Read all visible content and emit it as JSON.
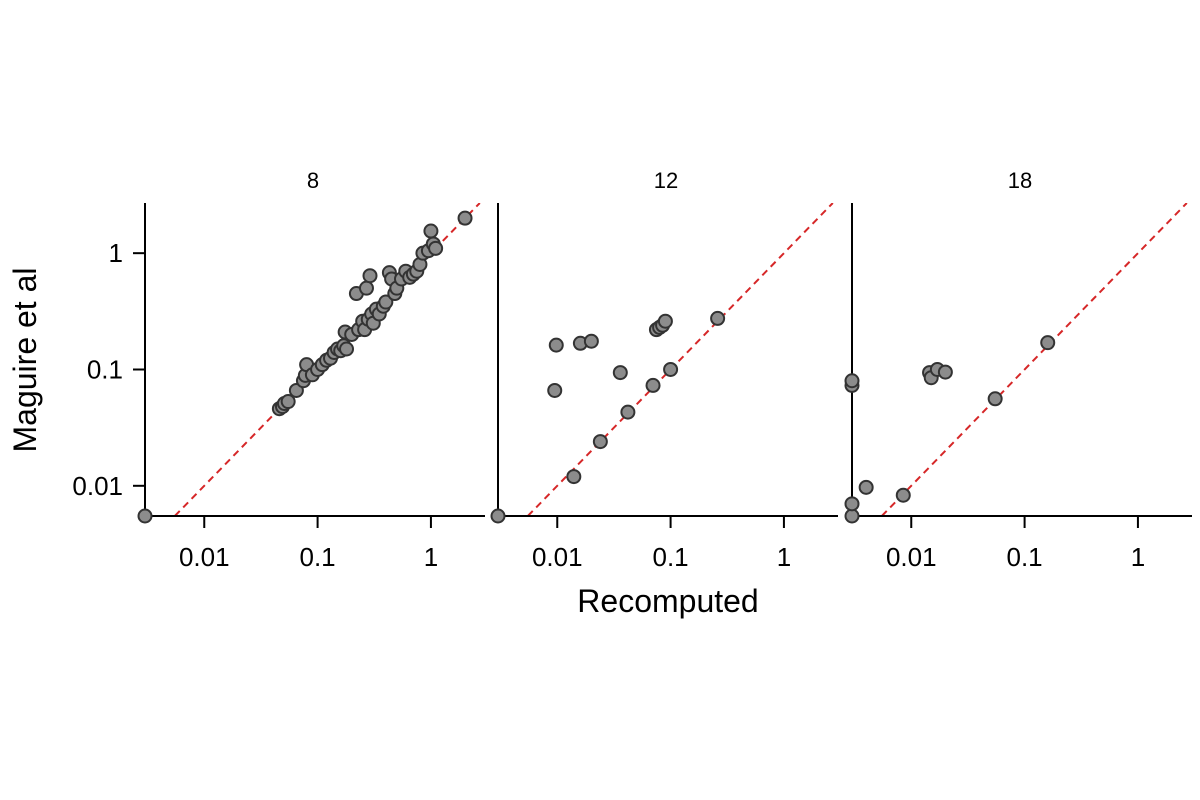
{
  "chart_data": {
    "type": "scatter",
    "scale": "log",
    "xlabel": "Recomputed",
    "ylabel": "Maguire et al",
    "xlim": [
      0.003,
      3
    ],
    "ylim": [
      0.0055,
      2.7
    ],
    "xticks": [
      0.01,
      0.1,
      1
    ],
    "xtick_labels": [
      "0.01",
      "0.1",
      "1"
    ],
    "yticks": [
      0.01,
      0.1,
      1
    ],
    "ytick_labels": [
      "0.01",
      "0.1",
      "1"
    ],
    "reference_line": "y = x",
    "colors": {
      "point_fill": "#8c8c8c",
      "point_edge": "#333333",
      "reference_line": "#d62728",
      "axis": "#000000"
    },
    "panels": [
      {
        "title": "8",
        "points": [
          [
            0.003,
            0.0055
          ],
          [
            0.046,
            0.046
          ],
          [
            0.049,
            0.048
          ],
          [
            0.051,
            0.051
          ],
          [
            0.055,
            0.053
          ],
          [
            0.065,
            0.066
          ],
          [
            0.075,
            0.08
          ],
          [
            0.078,
            0.089
          ],
          [
            0.08,
            0.11
          ],
          [
            0.09,
            0.09
          ],
          [
            0.1,
            0.1
          ],
          [
            0.11,
            0.11
          ],
          [
            0.12,
            0.12
          ],
          [
            0.13,
            0.125
          ],
          [
            0.14,
            0.14
          ],
          [
            0.15,
            0.15
          ],
          [
            0.16,
            0.145
          ],
          [
            0.17,
            0.16
          ],
          [
            0.18,
            0.15
          ],
          [
            0.175,
            0.21
          ],
          [
            0.2,
            0.2
          ],
          [
            0.22,
            0.45
          ],
          [
            0.23,
            0.22
          ],
          [
            0.25,
            0.26
          ],
          [
            0.26,
            0.22
          ],
          [
            0.27,
            0.5
          ],
          [
            0.28,
            0.27
          ],
          [
            0.29,
            0.64
          ],
          [
            0.3,
            0.3
          ],
          [
            0.31,
            0.25
          ],
          [
            0.33,
            0.33
          ],
          [
            0.35,
            0.3
          ],
          [
            0.38,
            0.35
          ],
          [
            0.4,
            0.38
          ],
          [
            0.43,
            0.68
          ],
          [
            0.45,
            0.6
          ],
          [
            0.48,
            0.45
          ],
          [
            0.5,
            0.5
          ],
          [
            0.55,
            0.6
          ],
          [
            0.6,
            0.7
          ],
          [
            0.65,
            0.62
          ],
          [
            0.7,
            0.66
          ],
          [
            0.75,
            0.7
          ],
          [
            0.8,
            0.8
          ],
          [
            0.85,
            1.0
          ],
          [
            0.95,
            1.05
          ],
          [
            1.0,
            1.55
          ],
          [
            1.05,
            1.2
          ],
          [
            1.1,
            1.1
          ],
          [
            2.0,
            2.0
          ]
        ]
      },
      {
        "title": "12",
        "points": [
          [
            0.003,
            0.0055
          ],
          [
            0.0095,
            0.066
          ],
          [
            0.0098,
            0.162
          ],
          [
            0.016,
            0.168
          ],
          [
            0.02,
            0.175
          ],
          [
            0.014,
            0.012
          ],
          [
            0.024,
            0.024
          ],
          [
            0.036,
            0.094
          ],
          [
            0.042,
            0.043
          ],
          [
            0.07,
            0.073
          ],
          [
            0.075,
            0.22
          ],
          [
            0.08,
            0.23
          ],
          [
            0.085,
            0.24
          ],
          [
            0.09,
            0.26
          ],
          [
            0.1,
            0.1
          ],
          [
            0.26,
            0.275
          ]
        ]
      },
      {
        "title": "18",
        "points": [
          [
            0.003,
            0.0055
          ],
          [
            0.003,
            0.007
          ],
          [
            0.003,
            0.073
          ],
          [
            0.003,
            0.08
          ],
          [
            0.004,
            0.0097
          ],
          [
            0.0085,
            0.0083
          ],
          [
            0.0145,
            0.094
          ],
          [
            0.015,
            0.085
          ],
          [
            0.017,
            0.1
          ],
          [
            0.02,
            0.095
          ],
          [
            0.055,
            0.056
          ],
          [
            0.16,
            0.17
          ]
        ]
      }
    ]
  }
}
